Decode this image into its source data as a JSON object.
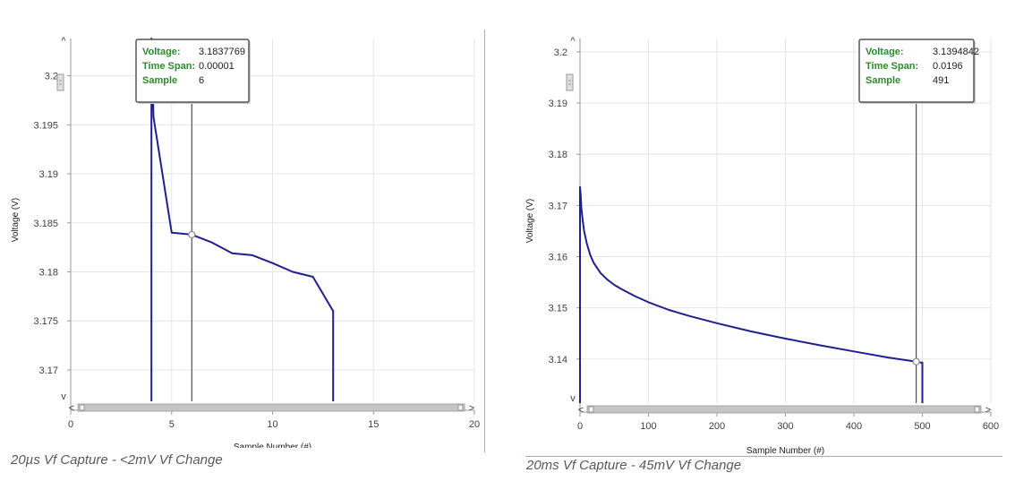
{
  "charts": [
    {
      "caption": "20µs Vf Capture - <2mV Vf Change",
      "tooltip": {
        "rows": [
          {
            "label": "Voltage:",
            "value": "3.1837769"
          },
          {
            "label": "Time Span:",
            "value": "0.00001"
          },
          {
            "label": "Sample",
            "value": "6"
          }
        ]
      }
    },
    {
      "caption": "20ms Vf Capture - 45mV Vf Change",
      "tooltip": {
        "rows": [
          {
            "label": "Voltage:",
            "value": "3.1394842"
          },
          {
            "label": "Time Span:",
            "value": "0.0196"
          },
          {
            "label": "Sample",
            "value": "491"
          }
        ]
      }
    }
  ],
  "chart_data": [
    {
      "type": "line",
      "xlabel": "Sample Number (#)",
      "ylabel": "Voltage (V)",
      "xlim": [
        0,
        20
      ],
      "ylim": [
        3.1668,
        3.2038
      ],
      "xticks": [
        0,
        5,
        10,
        15,
        20
      ],
      "yticks": [
        3.17,
        3.175,
        3.18,
        3.185,
        3.19,
        3.195,
        3.2
      ],
      "ytick_labels": [
        "3.17",
        "3.175",
        "3.18",
        "3.185",
        "3.19",
        "3.195",
        "3.2"
      ],
      "grid": true,
      "line_color": "#1f1f8f",
      "cursor_x": 6,
      "series": [
        {
          "x": [
            4,
            4,
            4.1,
            5,
            6,
            7,
            8,
            9,
            10,
            11,
            12,
            13,
            13
          ],
          "y": [
            3.1668,
            3.2038,
            3.1958,
            3.184,
            3.1838,
            3.183,
            3.1819,
            3.1817,
            3.1809,
            3.18,
            3.1795,
            3.176,
            3.1668
          ]
        }
      ]
    },
    {
      "type": "line",
      "xlabel": "Sample Number (#)",
      "ylabel": "Voltage (V)",
      "xlim": [
        0,
        600
      ],
      "ylim": [
        3.1314,
        3.2026
      ],
      "xticks": [
        0,
        100,
        200,
        300,
        400,
        500,
        600
      ],
      "yticks": [
        3.14,
        3.15,
        3.16,
        3.17,
        3.18,
        3.19,
        3.2
      ],
      "ytick_labels": [
        "3.14",
        "3.15",
        "3.16",
        "3.17",
        "3.18",
        "3.19",
        "3.2"
      ],
      "grid": true,
      "line_color": "#1f1f8f",
      "cursor_x": 491,
      "series": [
        {
          "x": [
            0,
            0,
            1,
            2,
            4,
            6,
            10,
            15,
            20,
            30,
            40,
            50,
            60,
            80,
            100,
            130,
            160,
            200,
            250,
            300,
            350,
            400,
            450,
            491,
            498,
            500,
            500
          ],
          "y": [
            3.1314,
            3.1736,
            3.172,
            3.1695,
            3.167,
            3.165,
            3.1625,
            3.1603,
            3.1588,
            3.1568,
            3.1555,
            3.1545,
            3.1537,
            3.1523,
            3.1511,
            3.1496,
            3.1484,
            3.147,
            3.1454,
            3.144,
            3.1427,
            3.1415,
            3.1403,
            3.1395,
            3.1393,
            3.1393,
            3.1314
          ]
        }
      ]
    }
  ]
}
